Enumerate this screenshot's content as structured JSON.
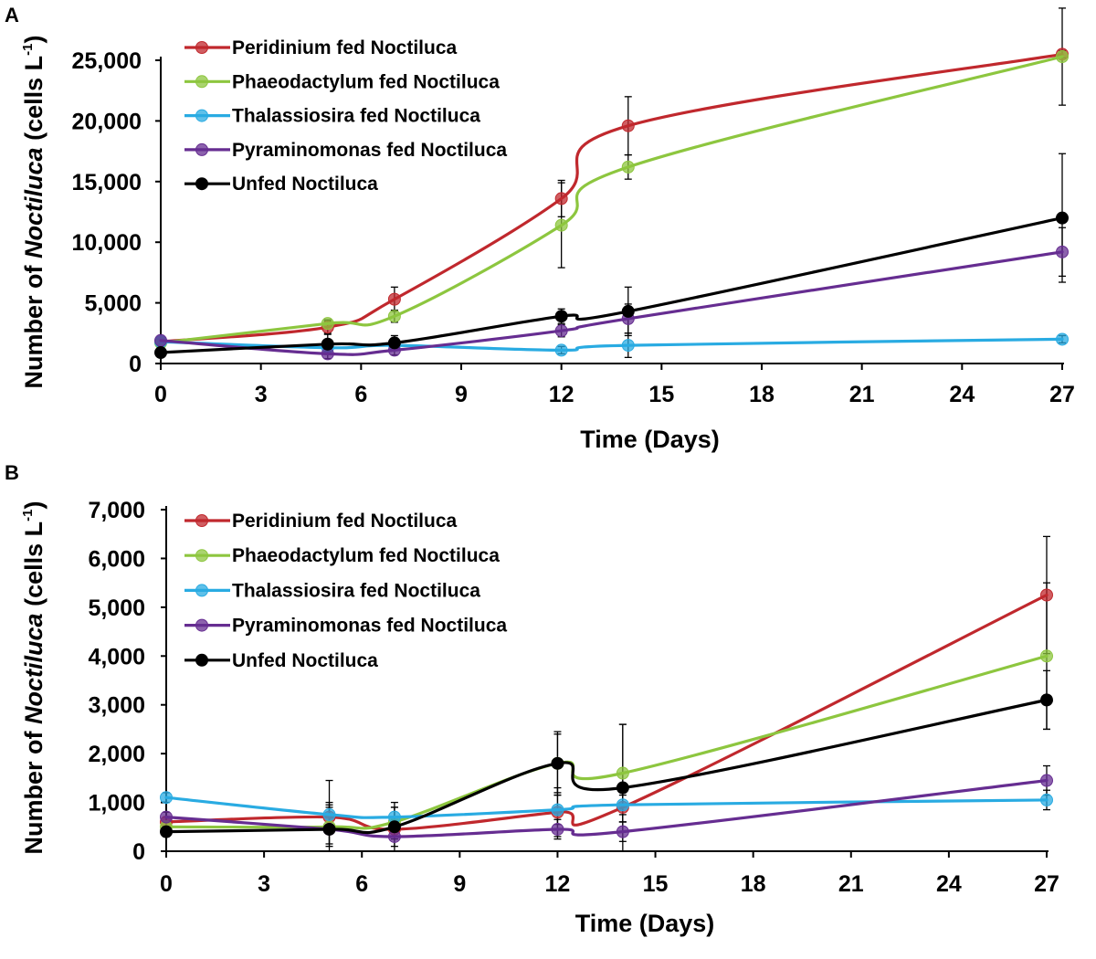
{
  "chart_data": [
    {
      "panel": "A",
      "type": "line",
      "xlabel": "Time (Days)",
      "ylabel": {
        "prefix": "Number of ",
        "italic": "Noctiluca",
        "suffix": " (cells  L",
        "sup": "-1",
        "close": ")"
      },
      "xticks": [
        0,
        3,
        6,
        9,
        12,
        15,
        18,
        21,
        24,
        27
      ],
      "xtick_labels": [
        "0",
        "3",
        "6",
        "9",
        "12",
        "15",
        "18",
        "21",
        "24",
        "27"
      ],
      "yticks": [
        0,
        5000,
        10000,
        15000,
        20000,
        25000
      ],
      "ytick_labels": [
        "0",
        "5,000",
        "10,000",
        "15,000",
        "20,000",
        "25,000"
      ],
      "xlim": [
        0,
        27
      ],
      "ylim": [
        0,
        25000
      ],
      "x": [
        0,
        5,
        7,
        12,
        14,
        27
      ],
      "legend_position": "top-left",
      "series": [
        {
          "name": "Peridinium fed Noctiluca",
          "color": "#C0282D",
          "values": [
            1800,
            3000,
            5300,
            13600,
            19600,
            25500
          ],
          "err": [
            300,
            500,
            1000,
            1500,
            2400,
            300
          ]
        },
        {
          "name": "Phaeodactylum fed Noctiluca",
          "color": "#8DC63F",
          "values": [
            1700,
            3300,
            3900,
            11400,
            16200,
            25300
          ],
          "err": [
            300,
            300,
            500,
            3500,
            1000,
            4000
          ]
        },
        {
          "name": "Thalassiosira fed Noctiluca",
          "color": "#29ABE2",
          "values": [
            1800,
            1300,
            1500,
            1100,
            1500,
            2000
          ],
          "err": [
            200,
            300,
            400,
            300,
            1000,
            300
          ]
        },
        {
          "name": "Pyraminomonas fed Noctiluca",
          "color": "#662D91",
          "values": [
            1900,
            800,
            1100,
            2700,
            3700,
            9200
          ],
          "err": [
            200,
            400,
            400,
            500,
            1200,
            2000
          ]
        },
        {
          "name": "Unfed Noctiluca",
          "color": "#000000",
          "values": [
            900,
            1600,
            1700,
            3900,
            4300,
            12000
          ],
          "err": [
            200,
            800,
            600,
            600,
            2000,
            5300
          ]
        }
      ]
    },
    {
      "panel": "B",
      "type": "line",
      "xlabel": "Time (Days)",
      "ylabel": {
        "prefix": "Number of ",
        "italic": "Noctiluca",
        "suffix": " (cells  L",
        "sup": "-1",
        "close": ")"
      },
      "xticks": [
        0,
        3,
        6,
        9,
        12,
        15,
        18,
        21,
        24,
        27
      ],
      "xtick_labels": [
        "0",
        "3",
        "6",
        "9",
        "12",
        "15",
        "18",
        "21",
        "24",
        "27"
      ],
      "yticks": [
        0,
        1000,
        2000,
        3000,
        4000,
        5000,
        6000,
        7000
      ],
      "ytick_labels": [
        "0",
        "1,000",
        "2,000",
        "3,000",
        "4,000",
        "5,000",
        "6,000",
        "7,000"
      ],
      "xlim": [
        0,
        27
      ],
      "ylim": [
        0,
        7000
      ],
      "x": [
        0,
        5,
        7,
        12,
        14,
        27
      ],
      "legend_position": "top-left",
      "series": [
        {
          "name": "Peridinium fed Noctiluca",
          "color": "#C0282D",
          "values": [
            600,
            700,
            450,
            800,
            900,
            5250
          ],
          "err": [
            100,
            300,
            200,
            500,
            300,
            1200
          ]
        },
        {
          "name": "Phaeodactylum fed Noctiluca",
          "color": "#8DC63F",
          "values": [
            500,
            500,
            600,
            1800,
            1600,
            4000
          ],
          "err": [
            100,
            400,
            300,
            600,
            1000,
            1500
          ]
        },
        {
          "name": "Thalassiosira fed Noctiluca",
          "color": "#29ABE2",
          "values": [
            1100,
            750,
            700,
            850,
            950,
            1050
          ],
          "err": [
            100,
            200,
            200,
            300,
            200,
            200
          ]
        },
        {
          "name": "Pyraminomonas fed Noctiluca",
          "color": "#662D91",
          "values": [
            700,
            450,
            300,
            450,
            400,
            1450
          ],
          "err": [
            100,
            300,
            200,
            200,
            200,
            300
          ]
        },
        {
          "name": "Unfed Noctiluca",
          "color": "#000000",
          "values": [
            400,
            450,
            500,
            1800,
            1300,
            3100
          ],
          "err": [
            100,
            1000,
            500,
            650,
            1300,
            600
          ]
        }
      ]
    }
  ]
}
